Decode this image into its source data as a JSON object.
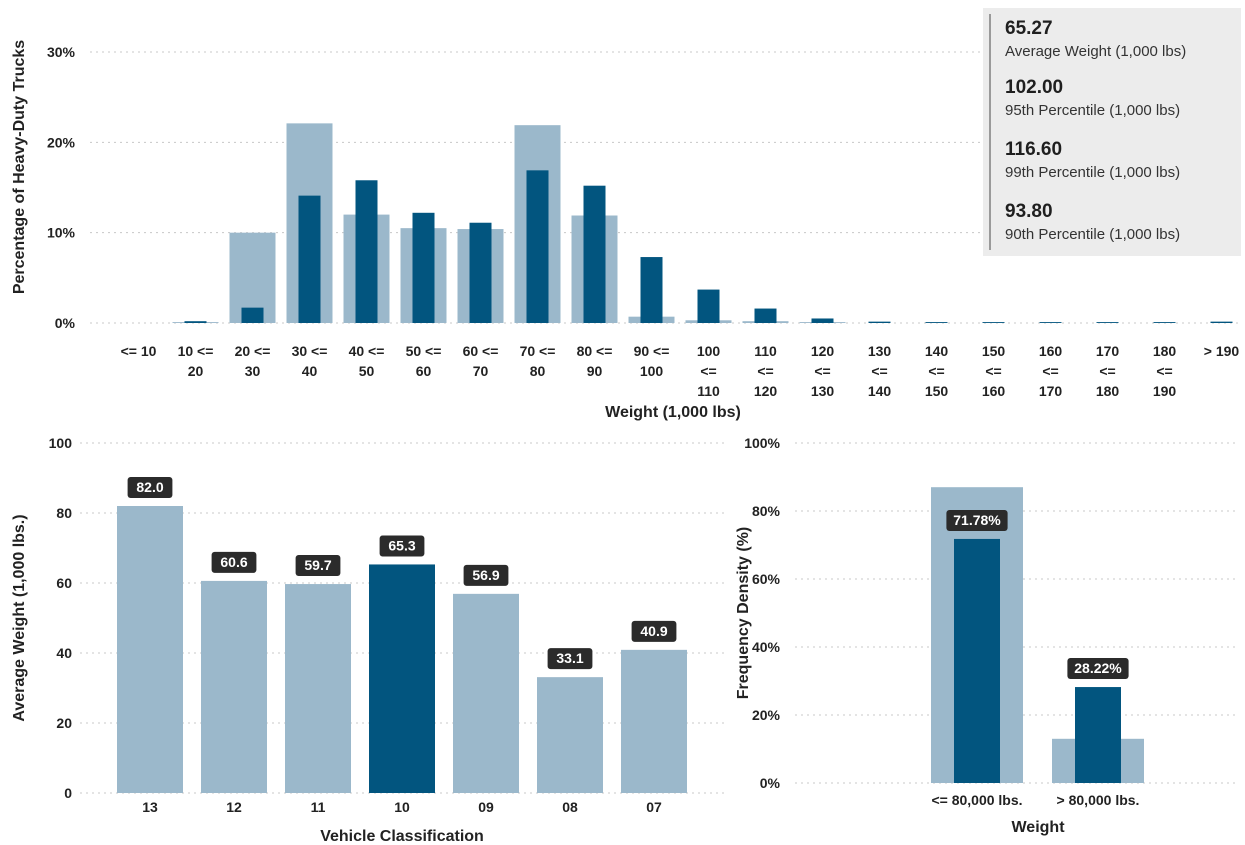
{
  "colors": {
    "light": "#9bb8cb",
    "dark": "#02557f",
    "label_bg": "#2b2b2b"
  },
  "kpi_card": [
    {
      "value": "65.27",
      "label": "Average Weight (1,000 lbs)"
    },
    {
      "value": "102.00",
      "label": "95th Percentile (1,000 lbs)"
    },
    {
      "value": "116.60",
      "label": "99th Percentile (1,000 lbs)"
    },
    {
      "value": "93.80",
      "label": "90th Percentile (1,000 lbs)"
    }
  ],
  "chart_data": [
    {
      "type": "bar",
      "xlabel": "Weight (1,000 lbs)",
      "ylabel": "Percentage of Heavy-Duty Trucks",
      "ylim": [
        0,
        30
      ],
      "yticks": [
        "0%",
        "10%",
        "20%",
        "30%"
      ],
      "grid": true,
      "categories": [
        [
          "<= 10"
        ],
        [
          "10 <=",
          "20"
        ],
        [
          "20 <=",
          "30"
        ],
        [
          "30 <=",
          "40"
        ],
        [
          "40 <=",
          "50"
        ],
        [
          "50 <=",
          "60"
        ],
        [
          "60 <=",
          "70"
        ],
        [
          "70 <=",
          "80"
        ],
        [
          "80 <=",
          "90"
        ],
        [
          "90 <=",
          "100"
        ],
        [
          "100",
          "<=",
          "110"
        ],
        [
          "110",
          "<=",
          "120"
        ],
        [
          "120",
          "<=",
          "130"
        ],
        [
          "130",
          "<=",
          "140"
        ],
        [
          "140",
          "<=",
          "150"
        ],
        [
          "150",
          "<=",
          "160"
        ],
        [
          "160",
          "<=",
          "170"
        ],
        [
          "170",
          "<=",
          "180"
        ],
        [
          "180",
          "<=",
          "190"
        ],
        [
          "> 190"
        ]
      ],
      "series": [
        {
          "values": [
            0,
            0.1,
            10,
            22.1,
            12,
            10.5,
            10.4,
            21.9,
            11.9,
            0.7,
            0.3,
            0.2,
            0.1,
            0,
            0,
            0,
            0,
            0,
            0,
            0
          ]
        },
        {
          "values": [
            0,
            0.2,
            1.7,
            14.1,
            15.8,
            12.2,
            11.1,
            16.9,
            15.2,
            7.3,
            3.7,
            1.6,
            0.5,
            0.15,
            0.1,
            0.1,
            0.1,
            0.1,
            0.1,
            0.15
          ]
        }
      ]
    },
    {
      "type": "bar",
      "xlabel": "Vehicle Classification",
      "ylabel": "Average Weight (1,000 lbs.)",
      "ylim": [
        0,
        100
      ],
      "yticks": [
        "0",
        "20",
        "40",
        "60",
        "80",
        "100"
      ],
      "grid": true,
      "categories": [
        "13",
        "12",
        "11",
        "10",
        "09",
        "08",
        "07"
      ],
      "values": [
        82.0,
        60.6,
        59.7,
        65.3,
        56.9,
        33.1,
        40.9
      ],
      "labels": [
        "82.0",
        "60.6",
        "59.7",
        "65.3",
        "56.9",
        "33.1",
        "40.9"
      ],
      "highlight": "10"
    },
    {
      "type": "bar",
      "xlabel": "Weight",
      "ylabel": "Frequency Density (%)",
      "ylim": [
        0,
        100
      ],
      "yticks": [
        "0%",
        "20%",
        "40%",
        "60%",
        "80%",
        "100%"
      ],
      "grid": true,
      "categories": [
        "<= 80,000 lbs.",
        "> 80,000 lbs."
      ],
      "series": [
        {
          "values": [
            87,
            13
          ]
        },
        {
          "values": [
            71.78,
            28.22
          ],
          "labels": [
            "71.78%",
            "28.22%"
          ]
        }
      ]
    }
  ]
}
